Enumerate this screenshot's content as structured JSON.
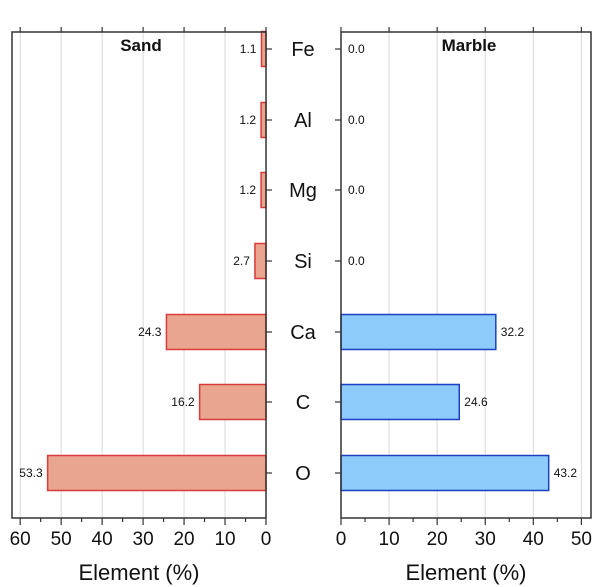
{
  "chart_data": [
    {
      "type": "bar",
      "orientation": "horizontal",
      "direction": "reversed",
      "title": "Sand",
      "xlabel": "Element (%)",
      "categories": [
        "Fe",
        "Al",
        "Mg",
        "Si",
        "Ca",
        "C",
        "O"
      ],
      "values": [
        1.1,
        1.2,
        1.2,
        2.7,
        24.3,
        16.2,
        53.3
      ],
      "value_labels": [
        "1.1",
        "1.2",
        "1.2",
        "2.7",
        "24.3",
        "16.2",
        "53.3"
      ],
      "xlim": [
        0,
        62
      ],
      "xticks": [
        0,
        10,
        20,
        30,
        40,
        50,
        60
      ],
      "xtick_labels": [
        "0",
        "10",
        "20",
        "30",
        "40",
        "50",
        "60"
      ],
      "grid": "vertical",
      "bar_fill": "#e9a58e",
      "bar_stroke": "#d93a3a"
    },
    {
      "type": "bar",
      "orientation": "horizontal",
      "title": "Marble",
      "xlabel": "Element (%)",
      "categories": [
        "Fe",
        "Al",
        "Mg",
        "Si",
        "Ca",
        "C",
        "O"
      ],
      "values": [
        0.0,
        0.0,
        0.0,
        0.0,
        32.2,
        24.6,
        43.2
      ],
      "value_labels": [
        "0.0",
        "0.0",
        "0.0",
        "0.0",
        "32.2",
        "24.6",
        "43.2"
      ],
      "xlim": [
        0,
        52
      ],
      "xticks": [
        0,
        10,
        20,
        30,
        40,
        50
      ],
      "xtick_labels": [
        "0",
        "10",
        "20",
        "30",
        "40",
        "50"
      ],
      "grid": "vertical",
      "bar_fill": "#8ccbfa",
      "bar_stroke": "#1c3fc4"
    }
  ],
  "colors": {
    "grid": "#d9d9d9",
    "axis": "#333333",
    "text": "#111111"
  }
}
